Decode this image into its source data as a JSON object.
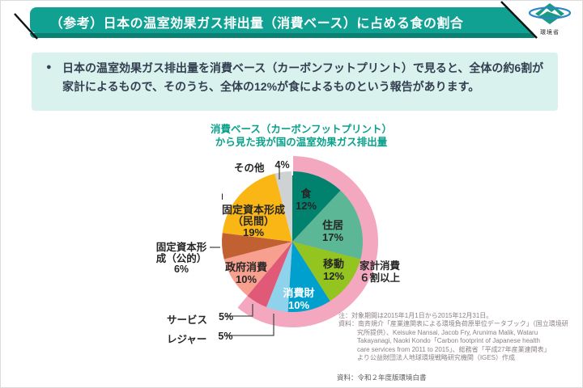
{
  "header": {
    "title": "（参考）日本の温室効果ガス排出量（消費ベース）に占める食の割合",
    "agency": "環境省",
    "banner_color": "#11A192",
    "banner_shadow_color": "#0B8174"
  },
  "summary": {
    "bullet": "●",
    "line1": "日本の温室効果ガス排出量を消費ベース（カーボンフットプリント）で見ると、全体の約6割が",
    "line2": "家計によるもので、そのうち、全体の12%が食によるものという報告があります。",
    "box_color": "#D9F2EE",
    "text_color": "#333F50"
  },
  "chart": {
    "title_line1": "消費ベース（カーボンフットプリント）",
    "title_line2": "から見た我が国の温室効果ガス排出量",
    "title_color": "#0AA18C",
    "labels": {
      "mark": "I",
      "kakei": {
        "line1": "家計消費",
        "line2": "６割以上"
      },
      "minkan": {
        "line1": "固定資本形成",
        "line2": "（民間）",
        "pct": "19%"
      },
      "koteki": {
        "line1": "固定資本形",
        "line2": "成（公的）",
        "pct": "6%"
      }
    }
  },
  "chart_data": {
    "type": "pie",
    "title": "消費ベース（カーボンフットプリント）から見た我が国の温室効果ガス排出量",
    "unit": "%",
    "start_angle_deg": 0,
    "direction": "clockwise",
    "slices": [
      {
        "label": "食",
        "value": 12,
        "pct": "12%",
        "color": "#00826F"
      },
      {
        "label": "住居",
        "value": 17,
        "pct": "17%",
        "color": "#5BB795"
      },
      {
        "label": "移動",
        "value": 12,
        "pct": "12%",
        "color": "#93C41F"
      },
      {
        "label": "消費財",
        "value": 10,
        "pct": "10%",
        "color": "#00A0CE"
      },
      {
        "label": "レジャー",
        "value": 5,
        "pct": "5%",
        "color": "#8FD2EB"
      },
      {
        "label": "サービス",
        "value": 5,
        "pct": "5%",
        "color": "#E05A78"
      },
      {
        "label": "政府消費",
        "value": 10,
        "pct": "10%",
        "color": "#F7A090"
      },
      {
        "label": "固定資本形成（公的）",
        "value": 6,
        "pct": "6%",
        "color": "#C16030"
      },
      {
        "label": "固定資本形成（民間）",
        "value": 19,
        "pct": "19%",
        "color": "#F9B615"
      },
      {
        "label": "その他",
        "value": 4,
        "pct": "4%",
        "color": "#CFD2D3"
      }
    ],
    "household": {
      "label": "家計消費６割以上",
      "percent": 61,
      "color": "#F4A8C0"
    }
  },
  "notes": {
    "lines": [
      "注：対象期間は2015年1月1日から2015年12月31日。",
      "資料：南斉規介「産業連関表による環境負荷原単位データブック」（国立環境研",
      "究所提供）、Keisuke Nansai, Jacob Fry, Arunima Malik, Wataru",
      "Takayanagi, Naoki Kondo「Carbon footprint of Japanese health",
      "care services from 2011 to 2015」、総務省「平成27年産業連関表」",
      "より公益財団法人地球環境戦略研究機関（IGES）作成"
    ]
  },
  "source": {
    "text": "資料：令和２年度版環境白書"
  }
}
